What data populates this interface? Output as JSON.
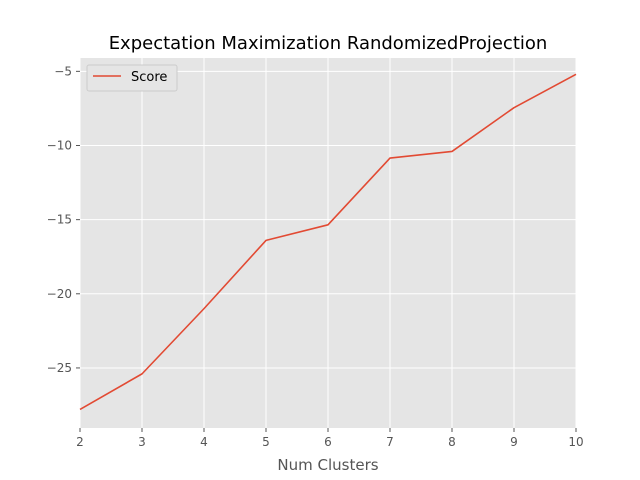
{
  "chart_data": {
    "type": "line",
    "title": "Expectation Maximization RandomizedProjection",
    "xlabel": "Num Clusters",
    "ylabel": "",
    "x": [
      2,
      3,
      4,
      5,
      6,
      7,
      8,
      9,
      10
    ],
    "series": [
      {
        "name": "Score",
        "values": [
          -27.8,
          -25.4,
          -21.0,
          -16.4,
          -15.35,
          -10.85,
          -10.4,
          -7.45,
          -5.2
        ],
        "color": "#e24a33"
      }
    ],
    "xlim": [
      2,
      10
    ],
    "ylim": [
      -29.05,
      -4.1
    ],
    "xticks": [
      2,
      3,
      4,
      5,
      6,
      7,
      8,
      9,
      10
    ],
    "yticks": [
      -25,
      -20,
      -15,
      -10,
      -5
    ],
    "ytick_labels": [
      "−25",
      "−20",
      "−15",
      "−10",
      "−5"
    ],
    "grid": true,
    "legend_position": "upper left",
    "background": "#e5e5e5",
    "grid_color": "#ffffff"
  }
}
